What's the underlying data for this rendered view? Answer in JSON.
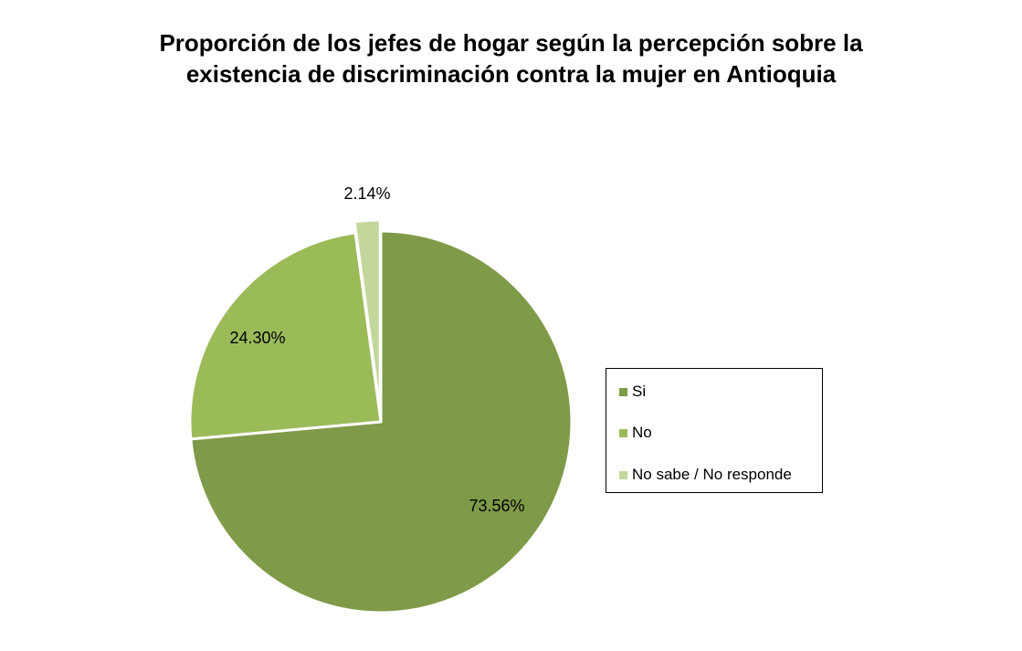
{
  "chart_data": {
    "type": "pie",
    "title": "Proporción de los jefes de hogar según la percepción  sobre la\nexistencia de discriminación contra la mujer en Antioquia",
    "categories": [
      "Si",
      "No",
      "No sabe / No responde"
    ],
    "values": [
      73.56,
      24.3,
      2.14
    ],
    "data_labels": [
      "73.56%",
      "24.30%",
      "2.14%"
    ],
    "colors": [
      "#7f9a48",
      "#9bbb59",
      "#c3d69b"
    ],
    "exploded": [
      false,
      false,
      true
    ],
    "legend_position": "right"
  }
}
